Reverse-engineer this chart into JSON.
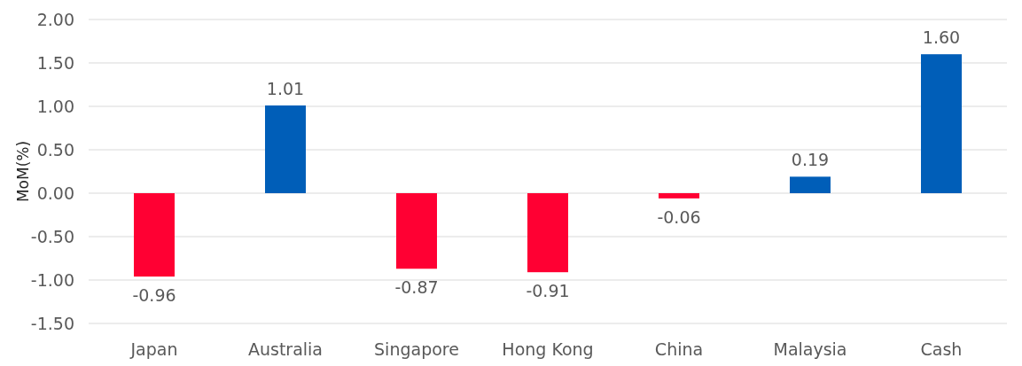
{
  "chart_data": {
    "type": "bar",
    "ylabel": "MoM(%)",
    "categories": [
      "Japan",
      "Australia",
      "Singapore",
      "Hong Kong",
      "China",
      "Malaysia",
      "Cash"
    ],
    "values": [
      -0.96,
      1.01,
      -0.87,
      -0.91,
      -0.06,
      0.19,
      1.6
    ],
    "colors": [
      "#ff0033",
      "#005eb8",
      "#ff0033",
      "#ff0033",
      "#ff0033",
      "#005eb8",
      "#005eb8"
    ],
    "value_labels": [
      "-0.96",
      "1.01",
      "-0.87",
      "-0.91",
      "-0.06",
      "0.19",
      "1.60"
    ],
    "ylim": [
      -1.5,
      2
    ],
    "yticks": [
      {
        "value": -1.5,
        "label": "-1.50"
      },
      {
        "value": -1,
        "label": "-1.00"
      },
      {
        "value": -0.5,
        "label": "-0.50"
      },
      {
        "value": 0,
        "label": "0.00"
      },
      {
        "value": 0.5,
        "label": "0.50"
      },
      {
        "value": 1,
        "label": "1.00"
      },
      {
        "value": 1.5,
        "label": "1.50"
      },
      {
        "value": 2,
        "label": "2.00"
      }
    ],
    "grid": "y"
  }
}
